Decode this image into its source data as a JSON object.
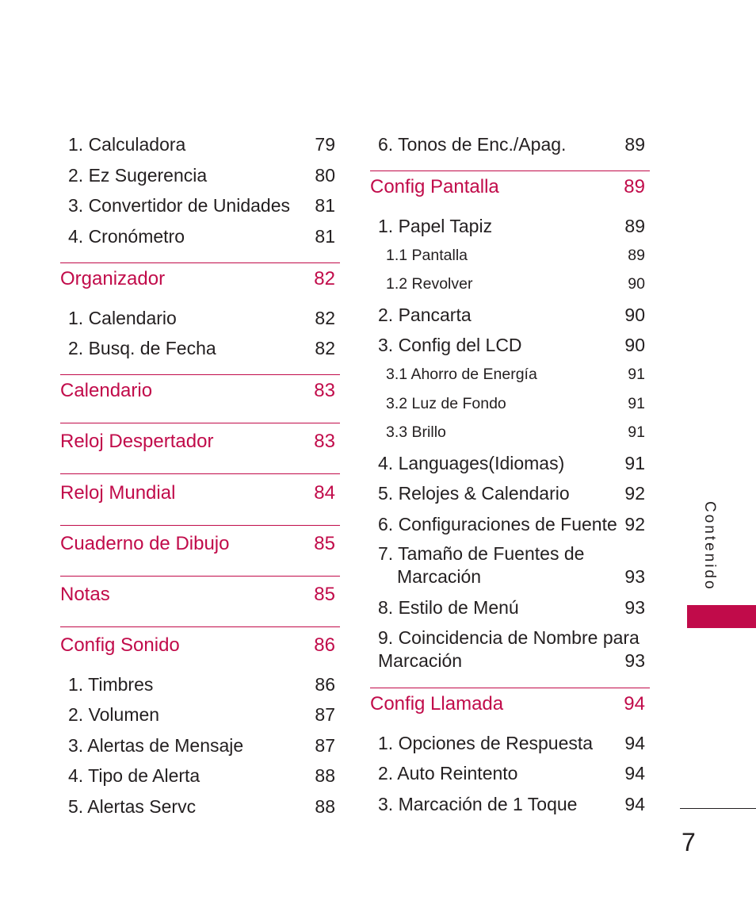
{
  "left_column": {
    "tools_items": [
      {
        "label": "1. Calculadora",
        "page": "79"
      },
      {
        "label": "2. Ez Sugerencia",
        "page": "80"
      },
      {
        "label": "3. Convertidor de Unidades",
        "page": "81"
      },
      {
        "label": "4. Cronómetro",
        "page": "81"
      }
    ],
    "organizador": {
      "label": "Organizador",
      "page": "82"
    },
    "organizador_items": [
      {
        "label": "1. Calendario",
        "page": "82"
      },
      {
        "label": "2. Busq. de Fecha",
        "page": "82"
      }
    ],
    "calendario": {
      "label": "Calendario",
      "page": "83"
    },
    "reloj_despertador": {
      "label": "Reloj Despertador",
      "page": "83"
    },
    "reloj_mundial": {
      "label": "Reloj Mundial",
      "page": "84"
    },
    "cuaderno": {
      "label": "Cuaderno de Dibujo",
      "page": "85"
    },
    "notas": {
      "label": "Notas",
      "page": "85"
    },
    "config_sonido": {
      "label": "Config Sonido",
      "page": "86"
    },
    "sonido_items": [
      {
        "label": "1. Timbres",
        "page": "86"
      },
      {
        "label": "2. Volumen",
        "page": "87"
      },
      {
        "label": "3. Alertas de Mensaje",
        "page": "87"
      },
      {
        "label": "4. Tipo de Alerta",
        "page": "88"
      },
      {
        "label": "5. Alertas Servc",
        "page": "88"
      }
    ]
  },
  "right_column": {
    "tonos": {
      "label": "6. Tonos de Enc./Apag.",
      "page": "89"
    },
    "config_pantalla": {
      "label": "Config Pantalla",
      "page": "89"
    },
    "papel_tapiz": {
      "label": "1. Papel Tapiz",
      "page": "89"
    },
    "papel_subs": [
      {
        "label": "1.1 Pantalla",
        "page": "89"
      },
      {
        "label": "1.2 Revolver",
        "page": "90"
      }
    ],
    "pancarta": {
      "label": "2. Pancarta",
      "page": "90"
    },
    "config_lcd": {
      "label": "3. Config del LCD",
      "page": "90"
    },
    "lcd_subs": [
      {
        "label": "3.1 Ahorro de Energía",
        "page": "91"
      },
      {
        "label": "3.2 Luz de Fondo",
        "page": "91"
      },
      {
        "label": "3.3 Brillo",
        "page": "91"
      }
    ],
    "pantalla_items": [
      {
        "label": "4. Languages(Idiomas)",
        "page": "91"
      },
      {
        "label": "5. Relojes & Calendario",
        "page": "92"
      },
      {
        "label": "6. Configuraciones de Fuente",
        "page": "92"
      }
    ],
    "tamano": {
      "line1": "7. Tamaño de Fuentes de",
      "line2": "Marcación",
      "page": "93"
    },
    "estilo": {
      "label": "8. Estilo de Menú",
      "page": "93"
    },
    "coincidencia": {
      "line1": "9. Coincidencia de Nombre para",
      "line2": "Marcación",
      "page": "93"
    },
    "config_llamada": {
      "label": "Config Llamada",
      "page": "94"
    },
    "llamada_items": [
      {
        "label": "1. Opciones de Respuesta",
        "page": "94"
      },
      {
        "label": "2. Auto Reintento",
        "page": "94"
      },
      {
        "label": "3. Marcación de 1 Toque",
        "page": "94"
      }
    ]
  },
  "side_tab": {
    "label": "Contenido"
  },
  "page_number": "7",
  "colors": {
    "accent": "#c10b4a",
    "text": "#231f20",
    "background": "#ffffff"
  }
}
